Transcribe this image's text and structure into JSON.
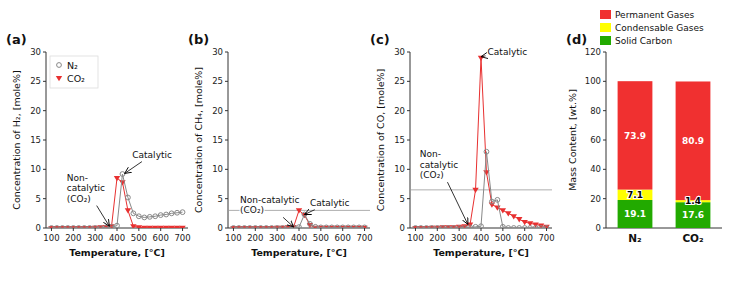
{
  "chart_data": [
    {
      "type": "line",
      "title": "(a)",
      "x_label": "Temperature, [°C]",
      "y_label": "Concentration of H₂, [mole%]",
      "x": [
        100,
        125,
        150,
        175,
        200,
        225,
        250,
        275,
        300,
        325,
        350,
        375,
        400,
        425,
        450,
        475,
        500,
        525,
        550,
        575,
        600,
        625,
        650,
        675,
        700
      ],
      "series": [
        {
          "name": "N₂",
          "color": "#888888",
          "marker": "open-circle",
          "line_style": "solid",
          "values": [
            0.0,
            0.0,
            0.0,
            0.0,
            0.0,
            0.0,
            0.0,
            0.0,
            0.0,
            0.0,
            0.1,
            0.2,
            0.4,
            9.2,
            5.2,
            2.5,
            2.0,
            1.8,
            1.9,
            2.0,
            2.2,
            2.3,
            2.5,
            2.6,
            2.7
          ]
        },
        {
          "name": "CO₂",
          "color": "#e83030",
          "marker": "triangle-down",
          "line_style": "solid",
          "values": [
            0.0,
            0.0,
            0.0,
            0.0,
            0.0,
            0.0,
            0.0,
            0.0,
            0.05,
            0.1,
            0.15,
            0.3,
            8.5,
            7.8,
            3.0,
            0.3,
            0.1,
            0.05,
            0.05,
            0.05,
            0.05,
            0.05,
            0.05,
            0.05,
            0.05
          ]
        }
      ],
      "xlim": [
        75,
        725
      ],
      "xticks": [
        100,
        200,
        300,
        400,
        500,
        600,
        700
      ],
      "ylim": [
        0,
        30
      ],
      "yticks": [
        0,
        5,
        10,
        15,
        20,
        25,
        30
      ],
      "legend": "upper left",
      "annotations": [
        {
          "text": "Non-\ncatalytic\n(CO₂)",
          "x": 365,
          "y": 0.3,
          "text_x": 170,
          "text_y": 4.5
        },
        {
          "text": "Catalytic",
          "x": 435,
          "y": 9.3,
          "text_x": 470,
          "text_y": 12.0
        }
      ]
    },
    {
      "type": "line",
      "title": "(b)",
      "x_label": "Temperature, [°C]",
      "y_label": "Concentration of CH₄, [mole%]",
      "x": [
        100,
        125,
        150,
        175,
        200,
        225,
        250,
        275,
        300,
        325,
        350,
        375,
        400,
        425,
        450,
        475,
        500,
        525,
        550,
        575,
        600,
        625,
        650,
        675,
        700
      ],
      "series": [
        {
          "color": "#888888",
          "marker": "open-circle",
          "line_style": "solid",
          "values": [
            0.0,
            0.0,
            0.0,
            0.0,
            0.0,
            0.0,
            0.0,
            0.0,
            0.0,
            0.0,
            0.05,
            0.1,
            0.15,
            2.3,
            0.7,
            0.2,
            0.1,
            0.1,
            0.1,
            0.1,
            0.1,
            0.1,
            0.1,
            0.1,
            0.1
          ]
        },
        {
          "color": "#e83030",
          "marker": "triangle-down",
          "line_style": "solid",
          "values": [
            0.0,
            0.0,
            0.0,
            0.0,
            0.0,
            0.0,
            0.0,
            0.0,
            0.05,
            0.05,
            0.1,
            0.15,
            3.0,
            2.2,
            0.5,
            0.05,
            0.05,
            0.05,
            0.05,
            0.05,
            0.05,
            0.05,
            0.05,
            0.05,
            0.05
          ]
        }
      ],
      "xlim": [
        75,
        725
      ],
      "xticks": [
        100,
        200,
        300,
        400,
        500,
        600,
        700
      ],
      "ylim": [
        0,
        30
      ],
      "yticks": [
        0,
        5,
        10,
        15,
        20,
        25,
        30
      ],
      "hline": 3.0,
      "annotations": [
        {
          "text": "Non-catalytic\n(CO₂)",
          "x": 375,
          "y": 0.18,
          "text_x": 130,
          "text_y": 2.5
        },
        {
          "text": "Catalytic",
          "x": 425,
          "y": 2.3,
          "text_x": 450,
          "text_y": 3.8
        }
      ]
    },
    {
      "type": "line",
      "title": "(c)",
      "x_label": "Temperature, [°C]",
      "y_label": "Concentration of CO, [mole%]",
      "x": [
        100,
        125,
        150,
        175,
        200,
        225,
        250,
        275,
        300,
        325,
        350,
        375,
        400,
        425,
        450,
        475,
        500,
        525,
        550,
        575,
        600,
        625,
        650,
        675,
        700
      ],
      "series": [
        {
          "color": "#888888",
          "marker": "open-circle",
          "line_style": "solid",
          "values": [
            0.0,
            0.0,
            0.0,
            0.0,
            0.0,
            0.0,
            0.0,
            0.0,
            0.0,
            0.0,
            0.1,
            0.2,
            0.3,
            13.0,
            4.5,
            4.8,
            0.2,
            0.0,
            0.0,
            0.0,
            0.0,
            0.0,
            0.0,
            0.0,
            0.0
          ]
        },
        {
          "color": "#e83030",
          "marker": "triangle-down",
          "line_style": "solid",
          "values": [
            0.0,
            0.0,
            0.0,
            0.05,
            0.05,
            0.1,
            0.1,
            0.1,
            0.2,
            0.3,
            0.6,
            6.5,
            29.0,
            9.5,
            4.0,
            3.5,
            3.0,
            2.5,
            2.0,
            1.5,
            1.0,
            0.8,
            0.6,
            0.4,
            0.2
          ]
        }
      ],
      "xlim": [
        75,
        725
      ],
      "xticks": [
        100,
        200,
        300,
        400,
        500,
        600,
        700
      ],
      "ylim": [
        0,
        30
      ],
      "yticks": [
        0,
        5,
        10,
        15,
        20,
        25,
        30
      ],
      "hline": 6.5,
      "annotations": [
        {
          "text": "Non-\ncatalytic\n(CO₂)",
          "x": 340,
          "y": 0.6,
          "text_x": 120,
          "text_y": 8.5
        },
        {
          "text": "Catalytic",
          "x": 400,
          "y": 29.2,
          "text_x": 430,
          "text_y": 29.5
        }
      ]
    },
    {
      "type": "bar",
      "stacked": true,
      "data_labels": true,
      "title": "(d)",
      "y_label": "Mass Content, [wt.%]",
      "categories": [
        "N₂",
        "CO₂"
      ],
      "series": [
        {
          "name": "Solid Carbon",
          "color": "#22aa00",
          "values": [
            19.1,
            17.6
          ]
        },
        {
          "name": "Condensable Gases",
          "color": "#ffff00",
          "values": [
            7.1,
            1.4
          ]
        },
        {
          "name": "Permanent Gases",
          "color": "#f03030",
          "values": [
            73.9,
            80.9
          ]
        }
      ],
      "ylim": [
        0,
        120
      ],
      "yticks": [
        0,
        20,
        40,
        60,
        80,
        100,
        120
      ],
      "legend": "above"
    }
  ]
}
